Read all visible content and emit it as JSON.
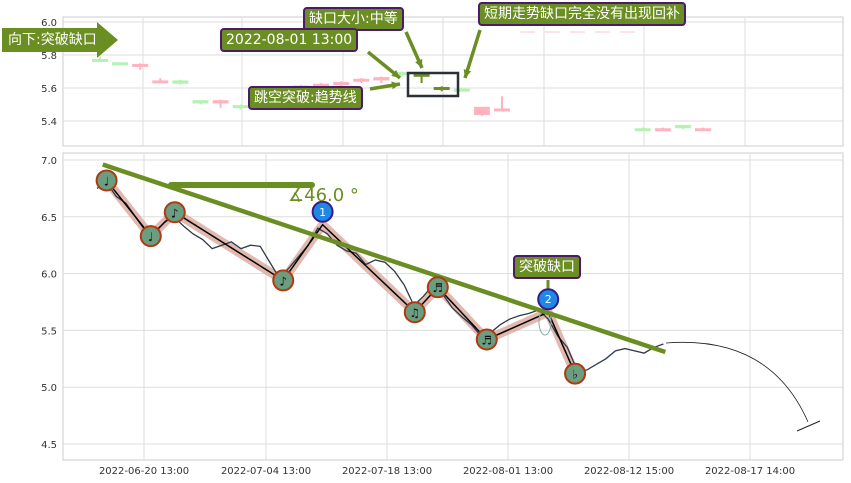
{
  "colors": {
    "up": "#b4f2b4",
    "down": "#ffb3c0",
    "trend": "#6b8e23",
    "price": "#2f3a4a",
    "zigzag": "#000000",
    "zigzag_band": "#d9a89a",
    "marker_fill": "#6b9e80",
    "marker_border": "#b03a10",
    "badge": "#1e88e5",
    "annotation_bg": "#6b8e23",
    "annotation_border": "#4b1a6b"
  },
  "annotations": {
    "direction": "向下:突破缺口",
    "date": "2022-08-01 13:00",
    "gap_size": "缺口大小:中等",
    "gap_fill": "短期走势缺口完全没有出现回补",
    "breakout": "跳空突破:趋势线",
    "angle": "∡46.0 °",
    "breakout_gap": "突破缺口",
    "badge1": "1",
    "badge2": "2"
  },
  "chart_data": [
    {
      "type": "candlestick",
      "ylim": [
        5.27,
        6.03
      ],
      "yticks": [
        "5.4",
        "5.6",
        "5.8",
        "6.0"
      ],
      "grid": true,
      "candles": [
        {
          "i": 0,
          "o": 5.77,
          "c": 5.77,
          "h": 5.79,
          "l": 5.76,
          "dir": "up"
        },
        {
          "i": 1,
          "o": 5.74,
          "c": 5.75,
          "h": 5.75,
          "l": 5.74,
          "dir": "up"
        },
        {
          "i": 2,
          "o": 5.74,
          "c": 5.73,
          "h": 5.75,
          "l": 5.71,
          "dir": "down"
        },
        {
          "i": 3,
          "o": 5.64,
          "c": 5.64,
          "h": 5.66,
          "l": 5.63,
          "dir": "down"
        },
        {
          "i": 4,
          "o": 5.62,
          "c": 5.64,
          "h": 5.65,
          "l": 5.62,
          "dir": "up"
        },
        {
          "i": 5,
          "o": 5.5,
          "c": 5.52,
          "h": 5.52,
          "l": 5.5,
          "dir": "up"
        },
        {
          "i": 6,
          "o": 5.52,
          "c": 5.5,
          "h": 5.53,
          "l": 5.48,
          "dir": "down"
        },
        {
          "i": 7,
          "o": 5.49,
          "c": 5.49,
          "h": 5.5,
          "l": 5.47,
          "dir": "up"
        },
        {
          "i": 8,
          "o": 5.55,
          "c": 5.56,
          "h": 5.57,
          "l": 5.54,
          "dir": "up"
        },
        {
          "i": 9,
          "o": 5.58,
          "c": 5.59,
          "h": 5.6,
          "l": 5.57,
          "dir": "up"
        },
        {
          "i": 10,
          "o": 5.6,
          "c": 5.61,
          "h": 5.62,
          "l": 5.59,
          "dir": "up"
        },
        {
          "i": 11,
          "o": 5.62,
          "c": 5.61,
          "h": 5.63,
          "l": 5.6,
          "dir": "down"
        },
        {
          "i": 12,
          "o": 5.63,
          "c": 5.62,
          "h": 5.64,
          "l": 5.6,
          "dir": "down"
        },
        {
          "i": 13,
          "o": 5.65,
          "c": 5.64,
          "h": 5.66,
          "l": 5.63,
          "dir": "down"
        },
        {
          "i": 14,
          "o": 5.66,
          "c": 5.64,
          "h": 5.67,
          "l": 5.63,
          "dir": "down"
        },
        {
          "i": 15,
          "o": 5.68,
          "c": 5.69,
          "h": 5.7,
          "l": 5.67,
          "dir": "up"
        },
        {
          "i": 16,
          "o": 5.67,
          "c": 5.68,
          "h": 5.68,
          "l": 5.63,
          "dir": "gap"
        },
        {
          "i": 17,
          "o": 5.59,
          "c": 5.6,
          "h": 5.61,
          "l": 5.58,
          "dir": "gap"
        },
        {
          "i": 18,
          "o": 5.58,
          "c": 5.59,
          "h": 5.6,
          "l": 5.58,
          "dir": "up"
        },
        {
          "i": 19,
          "o": 5.48,
          "c": 5.43,
          "h": 5.48,
          "l": 5.43,
          "dir": "down"
        },
        {
          "i": 20,
          "o": 5.47,
          "c": 5.47,
          "h": 5.55,
          "l": 5.46,
          "dir": "down"
        },
        {
          "i": 27,
          "o": 5.35,
          "c": 5.35,
          "h": 5.36,
          "l": 5.34,
          "dir": "up"
        },
        {
          "i": 28,
          "o": 5.35,
          "c": 5.35,
          "h": 5.36,
          "l": 5.34,
          "dir": "down"
        },
        {
          "i": 29,
          "o": 5.35,
          "c": 5.37,
          "h": 5.37,
          "l": 5.35,
          "dir": "up"
        },
        {
          "i": 30,
          "o": 5.35,
          "c": 5.35,
          "h": 5.36,
          "l": 5.34,
          "dir": "down"
        }
      ]
    },
    {
      "type": "line",
      "ylim": [
        4.42,
        7.06
      ],
      "yticks": [
        "4.5",
        "5.0",
        "5.5",
        "6.0",
        "6.5",
        "7.0"
      ],
      "xticks": [
        "2022-06-20 13:00",
        "2022-07-04 13:00",
        "2022-07-18 13:00",
        "2022-08-01 13:00",
        "2022-08-12 15:00",
        "2022-08-17 14:00"
      ],
      "grid": true,
      "price": [
        6.75,
        6.8,
        6.68,
        6.62,
        6.5,
        6.38,
        6.36,
        6.45,
        6.5,
        6.42,
        6.35,
        6.3,
        6.22,
        6.25,
        6.28,
        6.22,
        6.25,
        6.24,
        6.1,
        5.96,
        6.05,
        6.15,
        6.25,
        6.4,
        6.35,
        6.25,
        6.2,
        6.18,
        6.08,
        6.12,
        6.1,
        6.02,
        5.9,
        5.72,
        5.8,
        5.9,
        5.82,
        5.7,
        5.62,
        5.55,
        5.45,
        5.48,
        5.55,
        5.6,
        5.63,
        5.65,
        5.68,
        5.6,
        5.45,
        5.35,
        5.15,
        5.15,
        5.2,
        5.25,
        5.32,
        5.34,
        5.32,
        5.3,
        5.35,
        5.38
      ],
      "zigzag": [
        {
          "i": 1,
          "v": 6.82,
          "icon": "♩"
        },
        {
          "i": 5.6,
          "v": 6.33,
          "icon": "♩"
        },
        {
          "i": 8.1,
          "v": 6.54,
          "icon": "♪"
        },
        {
          "i": 19.4,
          "v": 5.94,
          "icon": "♪"
        },
        {
          "i": 23.5,
          "v": 6.43,
          "icon": "",
          "badge": "1"
        },
        {
          "i": 33.1,
          "v": 5.66,
          "icon": "♫"
        },
        {
          "i": 35.5,
          "v": 5.88,
          "icon": "♬"
        },
        {
          "i": 40.6,
          "v": 5.42,
          "icon": "♬"
        },
        {
          "i": 47,
          "v": 5.66,
          "icon": "",
          "badge": "2"
        },
        {
          "i": 49.8,
          "v": 5.12,
          "icon": "♭"
        }
      ],
      "trendline": [
        {
          "i": 0.6,
          "v": 6.96
        },
        {
          "i": 59.2,
          "v": 5.31
        }
      ]
    }
  ]
}
